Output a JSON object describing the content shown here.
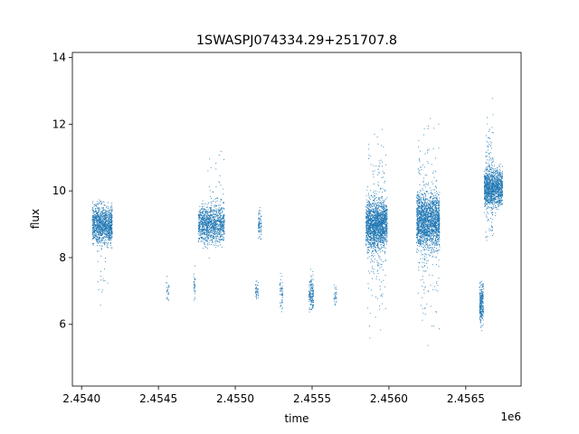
{
  "chart_data": {
    "type": "scatter",
    "title": "1SWASPJ074334.29+251707.8",
    "xlabel": "time",
    "ylabel": "flux",
    "x_offset_label": "1e6",
    "xlim": [
      2453940,
      2456860
    ],
    "ylim": [
      4.15,
      14.15
    ],
    "x_ticks": [
      {
        "value": 2454000,
        "label": "2.4540"
      },
      {
        "value": 2454500,
        "label": "2.4545"
      },
      {
        "value": 2455000,
        "label": "2.4550"
      },
      {
        "value": 2455500,
        "label": "2.4555"
      },
      {
        "value": 2456000,
        "label": "2.4560"
      },
      {
        "value": 2456500,
        "label": "2.4565"
      }
    ],
    "y_ticks": [
      {
        "value": 6,
        "label": "6"
      },
      {
        "value": 8,
        "label": "8"
      },
      {
        "value": 10,
        "label": "10"
      },
      {
        "value": 12,
        "label": "12"
      },
      {
        "value": 14,
        "label": "14"
      }
    ],
    "grid": false,
    "marker_color": "#1f77b4",
    "series": [
      {
        "clusters": [
          {
            "x": [
              2454070,
              2454200
            ],
            "y_center": 9.0,
            "y_spread": 0.55,
            "n": 1100
          },
          {
            "x": [
              2454100,
              2454200
            ],
            "y_center": 8.3,
            "y_spread": 1.3,
            "n": 60
          },
          {
            "x": [
              2454550,
              2454570
            ],
            "y_center": 7.0,
            "y_spread": 0.3,
            "n": 25
          },
          {
            "x": [
              2454730,
              2454740
            ],
            "y_center": 7.2,
            "y_spread": 0.4,
            "n": 30
          },
          {
            "x": [
              2454760,
              2454930
            ],
            "y_center": 9.0,
            "y_spread": 0.55,
            "n": 1100
          },
          {
            "x": [
              2454820,
              2454930
            ],
            "y_center": 9.6,
            "y_spread": 1.4,
            "n": 60
          },
          {
            "x": [
              2455130,
              2455150
            ],
            "y_center": 7.0,
            "y_spread": 0.4,
            "n": 40
          },
          {
            "x": [
              2455150,
              2455170
            ],
            "y_center": 9.0,
            "y_spread": 0.4,
            "n": 80
          },
          {
            "x": [
              2455290,
              2455310
            ],
            "y_center": 6.9,
            "y_spread": 0.5,
            "n": 50
          },
          {
            "x": [
              2455480,
              2455510
            ],
            "y_center": 6.9,
            "y_spread": 0.5,
            "n": 160
          },
          {
            "x": [
              2455640,
              2455660
            ],
            "y_center": 6.9,
            "y_spread": 0.35,
            "n": 30
          },
          {
            "x": [
              2455850,
              2455990
            ],
            "y_center": 9.0,
            "y_spread": 0.7,
            "n": 1600
          },
          {
            "x": [
              2455860,
              2455980
            ],
            "y_center": 9.0,
            "y_spread": 2.6,
            "n": 260
          },
          {
            "x": [
              2456180,
              2456330
            ],
            "y_center": 9.1,
            "y_spread": 0.8,
            "n": 1700
          },
          {
            "x": [
              2456190,
              2456330
            ],
            "y_center": 9.0,
            "y_spread": 2.7,
            "n": 280
          },
          {
            "x": [
              2456590,
              2456615
            ],
            "y_center": 6.6,
            "y_spread": 0.6,
            "n": 260
          },
          {
            "x": [
              2456620,
              2456740
            ],
            "y_center": 10.1,
            "y_spread": 0.55,
            "n": 1200
          },
          {
            "x": [
              2456630,
              2456680
            ],
            "y_center": 10.3,
            "y_spread": 1.8,
            "n": 160
          }
        ]
      }
    ]
  }
}
